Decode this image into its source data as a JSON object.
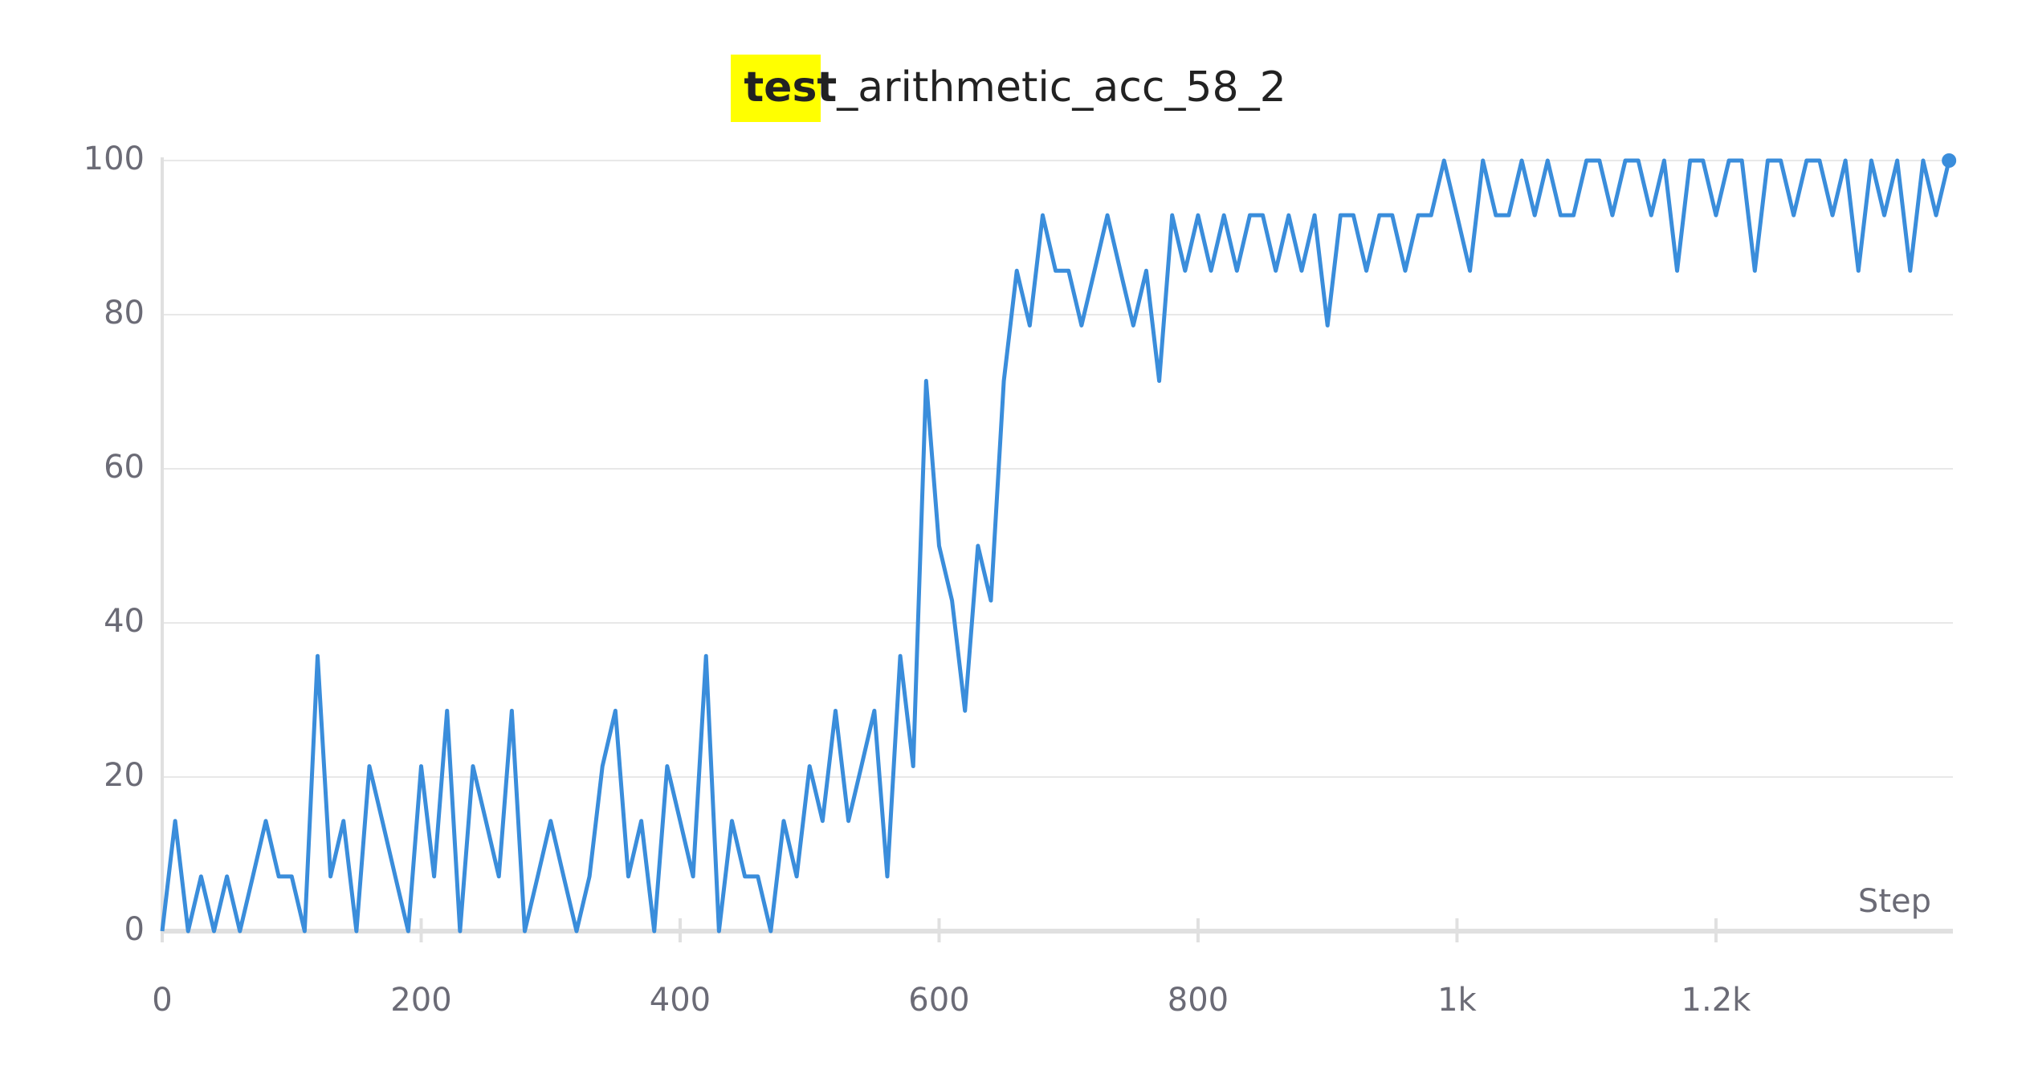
{
  "chart_data": {
    "type": "line",
    "title": {
      "highlighted": "test",
      "rest": "_arithmetic_acc_58_2"
    },
    "x_label": "Step",
    "x": [
      0,
      10,
      20,
      30,
      40,
      50,
      60,
      70,
      80,
      90,
      100,
      110,
      120,
      130,
      140,
      150,
      160,
      170,
      180,
      190,
      200,
      210,
      220,
      230,
      240,
      250,
      260,
      270,
      280,
      290,
      300,
      310,
      320,
      330,
      340,
      350,
      360,
      370,
      380,
      390,
      400,
      410,
      420,
      430,
      440,
      450,
      460,
      470,
      480,
      490,
      500,
      510,
      520,
      530,
      540,
      550,
      560,
      570,
      580,
      590,
      600,
      610,
      620,
      630,
      640,
      650,
      660,
      670,
      680,
      690,
      700,
      710,
      720,
      730,
      740,
      750,
      760,
      770,
      780,
      790,
      800,
      810,
      820,
      830,
      840,
      850,
      860,
      870,
      880,
      890,
      900,
      910,
      920,
      930,
      940,
      950,
      960,
      970,
      980,
      990,
      1000,
      1010,
      1020,
      1030,
      1040,
      1050,
      1060,
      1070,
      1080,
      1090,
      1100,
      1110,
      1120,
      1130,
      1140,
      1150,
      1160,
      1170,
      1180,
      1190,
      1200,
      1210,
      1220,
      1230,
      1240,
      1250,
      1260,
      1270,
      1280,
      1290,
      1300,
      1310,
      1320,
      1330,
      1340,
      1350,
      1360,
      1370,
      1380
    ],
    "series": [
      {
        "color": "#3a8ddb",
        "values": [
          0,
          14.3,
          0,
          7.1,
          0,
          7.1,
          0,
          7.1,
          14.3,
          7.1,
          7.1,
          0,
          35.7,
          7.1,
          14.3,
          0,
          21.4,
          14.3,
          7.1,
          0,
          21.4,
          7.1,
          28.6,
          0,
          21.4,
          14.3,
          7.1,
          28.6,
          0,
          7.1,
          14.3,
          7.1,
          0,
          7.1,
          21.4,
          28.6,
          7.1,
          14.3,
          0,
          21.4,
          14.3,
          7.1,
          35.7,
          0,
          14.3,
          7.1,
          7.1,
          0,
          14.3,
          7.1,
          21.4,
          14.3,
          28.6,
          14.3,
          21.4,
          28.6,
          7.1,
          35.7,
          21.4,
          71.4,
          50,
          42.9,
          28.6,
          50,
          42.9,
          71.4,
          85.7,
          78.6,
          92.9,
          85.7,
          85.7,
          78.6,
          85.7,
          92.9,
          85.7,
          78.6,
          85.7,
          71.4,
          92.9,
          85.7,
          92.9,
          85.7,
          92.9,
          85.7,
          92.9,
          92.9,
          85.7,
          92.9,
          85.7,
          92.9,
          78.6,
          92.9,
          92.9,
          85.7,
          92.9,
          92.9,
          85.7,
          92.9,
          92.9,
          100,
          92.9,
          85.7,
          100,
          92.9,
          92.9,
          100,
          92.9,
          100,
          92.9,
          92.9,
          100,
          100,
          92.9,
          100,
          100,
          92.9,
          100,
          85.7,
          100,
          100,
          92.9,
          100,
          100,
          85.7,
          100,
          100,
          92.9,
          100,
          100,
          92.9,
          100,
          85.7,
          100,
          92.9,
          100,
          85.7,
          100,
          92.9,
          100
        ]
      }
    ],
    "xlim": [
      0,
      1383
    ],
    "ylim": [
      0,
      100
    ],
    "xticks": [
      0,
      200,
      400,
      600,
      800,
      {
        "value": 1000,
        "label": "1k"
      },
      {
        "value": 1200,
        "label": "1.2k"
      }
    ],
    "yticks": [
      0,
      20,
      40,
      60,
      80,
      100
    ],
    "grid": true
  }
}
